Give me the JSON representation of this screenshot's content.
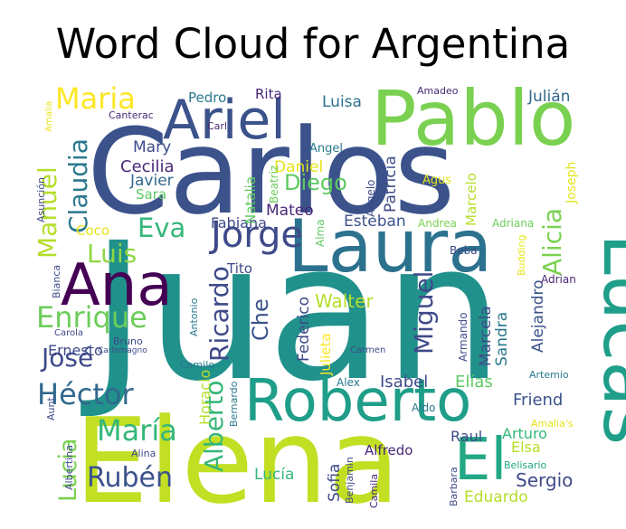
{
  "chart_data": {
    "type": "wordcloud",
    "title": "Word Cloud for Argentina",
    "background": "#ffffff",
    "colormap": "viridis",
    "words": [
      {
        "text": "Juan",
        "weight": 100,
        "color": "#21918c"
      },
      {
        "text": "Carlos",
        "weight": 95,
        "color": "#3b528b"
      },
      {
        "text": "Elena",
        "weight": 90,
        "color": "#c2df23"
      },
      {
        "text": "Pablo",
        "weight": 60,
        "color": "#7ad151"
      },
      {
        "text": "Laura",
        "weight": 60,
        "color": "#2c728e"
      },
      {
        "text": "Lucas",
        "weight": 58,
        "color": "#1f9e89"
      },
      {
        "text": "Roberto",
        "weight": 55,
        "color": "#1f9e89"
      },
      {
        "text": "Ariel",
        "weight": 48,
        "color": "#3b528b"
      },
      {
        "text": "Ana",
        "weight": 48,
        "color": "#440154"
      },
      {
        "text": "El",
        "weight": 45,
        "color": "#22a884"
      },
      {
        "text": "Jorge",
        "weight": 30,
        "color": "#3e4a89"
      },
      {
        "text": "Maria",
        "weight": 27,
        "color": "#fde725"
      },
      {
        "text": "Enrique",
        "weight": 27,
        "color": "#6ccd5a"
      },
      {
        "text": "Héctor",
        "weight": 26,
        "color": "#31688e"
      },
      {
        "text": "María",
        "weight": 25,
        "color": "#35b779"
      },
      {
        "text": "Rubén",
        "weight": 24,
        "color": "#3b528b"
      },
      {
        "text": "Eva",
        "weight": 24,
        "color": "#35b779"
      },
      {
        "text": "Miguel",
        "weight": 24,
        "color": "#3e4a89"
      },
      {
        "text": "Claudia",
        "weight": 23,
        "color": "#2a788e"
      },
      {
        "text": "Manuel",
        "weight": 23,
        "color": "#b5de2b"
      },
      {
        "text": "Ricardo",
        "weight": 23,
        "color": "#3e4a89"
      },
      {
        "text": "Alicia",
        "weight": 23,
        "color": "#7ad151"
      },
      {
        "text": "Luis",
        "weight": 23,
        "color": "#90d743"
      },
      {
        "text": "José",
        "weight": 23,
        "color": "#3e4a89"
      },
      {
        "text": "Alberto",
        "weight": 23,
        "color": "#35b779"
      },
      {
        "text": "Lucia",
        "weight": 22,
        "color": "#7ad151"
      },
      {
        "text": "Diego",
        "weight": 21,
        "color": "#5ec962"
      },
      {
        "text": "Che",
        "weight": 21,
        "color": "#3b528b"
      },
      {
        "text": "Walter",
        "weight": 17,
        "color": "#b5de2b"
      },
      {
        "text": "Sergio",
        "weight": 16,
        "color": "#3e4a89"
      },
      {
        "text": "Cecilia",
        "weight": 16,
        "color": "#482878"
      },
      {
        "text": "Friend",
        "weight": 15,
        "color": "#3b528b"
      },
      {
        "text": "Isabel",
        "weight": 15,
        "color": "#3e4a89"
      },
      {
        "text": "Elías",
        "weight": 15,
        "color": "#5ec962"
      },
      {
        "text": "Sandra",
        "weight": 15,
        "color": "#2a788e"
      },
      {
        "text": "Marcela",
        "weight": 14,
        "color": "#3e4a89"
      },
      {
        "text": "Esteban",
        "weight": 14,
        "color": "#3b528b"
      },
      {
        "text": "Luisa",
        "weight": 14,
        "color": "#2c728e"
      },
      {
        "text": "Javier",
        "weight": 14,
        "color": "#31688e"
      },
      {
        "text": "Federico",
        "weight": 14,
        "color": "#3e4a89"
      },
      {
        "text": "Julián",
        "weight": 14,
        "color": "#31688e"
      },
      {
        "text": "Daniel",
        "weight": 14,
        "color": "#e5e419"
      },
      {
        "text": "Mateo",
        "weight": 14,
        "color": "#482878"
      },
      {
        "text": "Mary",
        "weight": 14,
        "color": "#3e4a89"
      },
      {
        "text": "Eduardo",
        "weight": 14,
        "color": "#b5de2b"
      },
      {
        "text": "Alejandro",
        "weight": 14,
        "color": "#3b528b"
      },
      {
        "text": "Patricia",
        "weight": 14,
        "color": "#3e4a89"
      },
      {
        "text": "Lucía",
        "weight": 14,
        "color": "#35b779"
      },
      {
        "text": "Sofia",
        "weight": 14,
        "color": "#3e4a89"
      },
      {
        "text": "Raul",
        "weight": 13,
        "color": "#3e4a89"
      },
      {
        "text": "Arturo",
        "weight": 13,
        "color": "#35b779"
      },
      {
        "text": "Elsa",
        "weight": 13,
        "color": "#b5de2b"
      },
      {
        "text": "Horacio",
        "weight": 13,
        "color": "#b5de2b"
      },
      {
        "text": "Ernesto",
        "weight": 13,
        "color": "#3e4a89"
      },
      {
        "text": "Fabiana",
        "weight": 13,
        "color": "#3e4a89"
      },
      {
        "text": "Alfredo",
        "weight": 12,
        "color": "#482878"
      },
      {
        "text": "Julieta",
        "weight": 12,
        "color": "#fde725"
      },
      {
        "text": "Pedro",
        "weight": 12,
        "color": "#2a788e"
      },
      {
        "text": "Rita",
        "weight": 12,
        "color": "#482878"
      },
      {
        "text": "Sara",
        "weight": 12,
        "color": "#5ec962"
      },
      {
        "text": "Tito",
        "weight": 12,
        "color": "#3e4a89"
      },
      {
        "text": "Natalia",
        "weight": 12,
        "color": "#5ec962"
      },
      {
        "text": "Marcelo",
        "weight": 12,
        "color": "#b5de2b"
      },
      {
        "text": "Coco",
        "weight": 12,
        "color": "#e5e419"
      },
      {
        "text": "Joseph",
        "weight": 11,
        "color": "#e5e419"
      },
      {
        "text": "Angel",
        "weight": 11,
        "color": "#2a788e"
      },
      {
        "text": "Beatriz",
        "weight": 10,
        "color": "#6ccd5a"
      },
      {
        "text": "Angelo",
        "weight": 10,
        "color": "#3e4a89"
      },
      {
        "text": "Agus",
        "weight": 10,
        "color": "#e5e419"
      },
      {
        "text": "Andrea",
        "weight": 10,
        "color": "#7ad151"
      },
      {
        "text": "Adriana",
        "weight": 10,
        "color": "#6ccd5a"
      },
      {
        "text": "Beba",
        "weight": 9,
        "color": "#3e4a89"
      },
      {
        "text": "Adrian",
        "weight": 9,
        "color": "#482878"
      },
      {
        "text": "Alma",
        "weight": 9,
        "color": "#5ec962"
      },
      {
        "text": "Armando",
        "weight": 9,
        "color": "#3e4a89"
      },
      {
        "text": "Alex",
        "weight": 9,
        "color": "#2a788e"
      },
      {
        "text": "Aldo",
        "weight": 9,
        "color": "#2a788e"
      },
      {
        "text": "Bruno",
        "weight": 9,
        "color": "#3e4a89"
      },
      {
        "text": "Antonio",
        "weight": 9,
        "color": "#2a788e"
      },
      {
        "text": "Camilo",
        "weight": 9,
        "color": "#2a788e"
      },
      {
        "text": "Amadeo",
        "weight": 9,
        "color": "#482878"
      },
      {
        "text": "Canterac",
        "weight": 9,
        "color": "#482878"
      },
      {
        "text": "Carl",
        "weight": 9,
        "color": "#482878"
      },
      {
        "text": "Asunción",
        "weight": 9,
        "color": "#3e4a89"
      },
      {
        "text": "Bianca",
        "weight": 9,
        "color": "#3e4a89"
      },
      {
        "text": "Artemio",
        "weight": 9,
        "color": "#2a788e"
      },
      {
        "text": "Alina",
        "weight": 9,
        "color": "#3e4a89"
      },
      {
        "text": "Aunt",
        "weight": 9,
        "color": "#3e4a89"
      },
      {
        "text": "Albertina",
        "weight": 9,
        "color": "#3e4a89"
      },
      {
        "text": "Bernardo",
        "weight": 9,
        "color": "#2a788e"
      },
      {
        "text": "Benjamin",
        "weight": 9,
        "color": "#3e4a89"
      },
      {
        "text": "Camila",
        "weight": 9,
        "color": "#482878"
      },
      {
        "text": "Barbara",
        "weight": 9,
        "color": "#3e4a89"
      },
      {
        "text": "Belisario",
        "weight": 9,
        "color": "#22a884"
      },
      {
        "text": "Amalia's",
        "weight": 9,
        "color": "#e5e419"
      },
      {
        "text": "Budding",
        "weight": 9,
        "color": "#e5e419"
      },
      {
        "text": "Amalia",
        "weight": 8,
        "color": "#e5e419"
      },
      {
        "text": "Carola",
        "weight": 8,
        "color": "#3e4a89"
      },
      {
        "text": "Carlomagno",
        "weight": 8,
        "color": "#3e4a89"
      },
      {
        "text": "Carmen",
        "weight": 8,
        "color": "#3e4a89"
      }
    ]
  }
}
